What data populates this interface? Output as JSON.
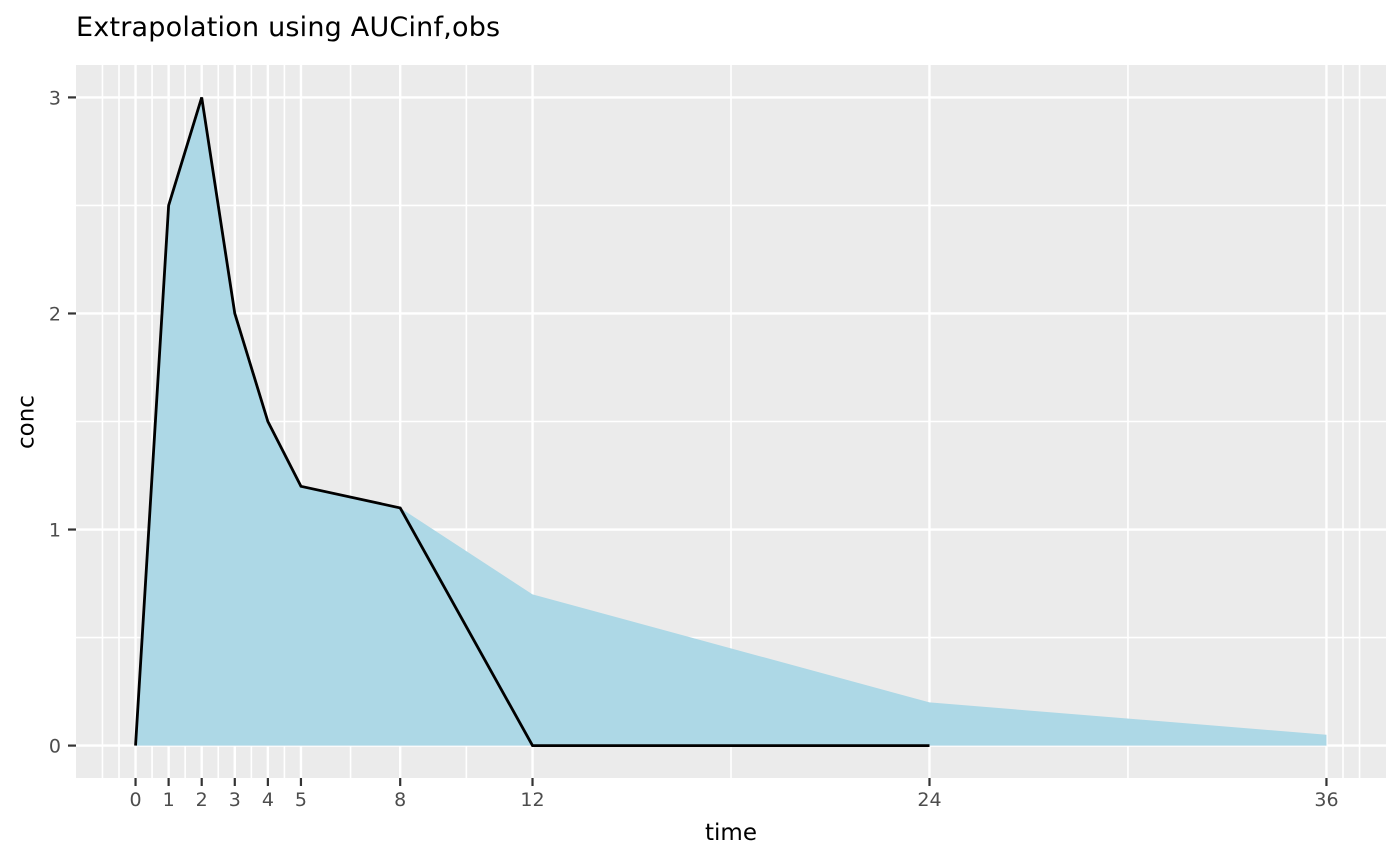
{
  "chart_data": {
    "type": "area",
    "title": "Extrapolation using AUCinf,obs",
    "xlabel": "time",
    "ylabel": "conc",
    "xlim": [
      -1.8,
      37.8
    ],
    "ylim": [
      -0.15,
      3.15
    ],
    "x_ticks": [
      0,
      1,
      2,
      3,
      4,
      5,
      8,
      12,
      24,
      36
    ],
    "x_minor_breaks": [
      -1,
      -0.5,
      0.5,
      1.5,
      2.5,
      3.5,
      4.5,
      6.5,
      10,
      18,
      30,
      36.5,
      37
    ],
    "y_ticks": [
      0,
      1,
      2,
      3
    ],
    "y_minor_breaks": [
      0.5,
      1.5,
      2.5
    ],
    "grid": true,
    "legend_position": "none",
    "series": [
      {
        "name": "observed-concentration-line",
        "type": "line",
        "x": [
          0,
          1,
          2,
          3,
          4,
          5,
          8,
          12,
          24
        ],
        "y": [
          0,
          2.5,
          3,
          2,
          1.5,
          1.2,
          1.1,
          0,
          0
        ]
      },
      {
        "name": "aucinf-obs-extrapolation-ribbon",
        "type": "area",
        "baseline": 0,
        "x": [
          0,
          1,
          2,
          3,
          4,
          5,
          8,
          12,
          24,
          36
        ],
        "y": [
          0,
          2.5,
          3,
          2,
          1.5,
          1.2,
          1.1,
          0.7,
          0.2,
          0.05
        ]
      }
    ],
    "colors": {
      "figure_background": "#FFFFFF",
      "panel_background": "#EBEBEB",
      "gridline": "#FFFFFF",
      "ribbon_fill": "#ADD8E6",
      "line_stroke": "#000000",
      "tick_mark": "#333333",
      "tick_label": "#4D4D4D",
      "title_text": "#000000",
      "axis_label_text": "#000000"
    }
  }
}
